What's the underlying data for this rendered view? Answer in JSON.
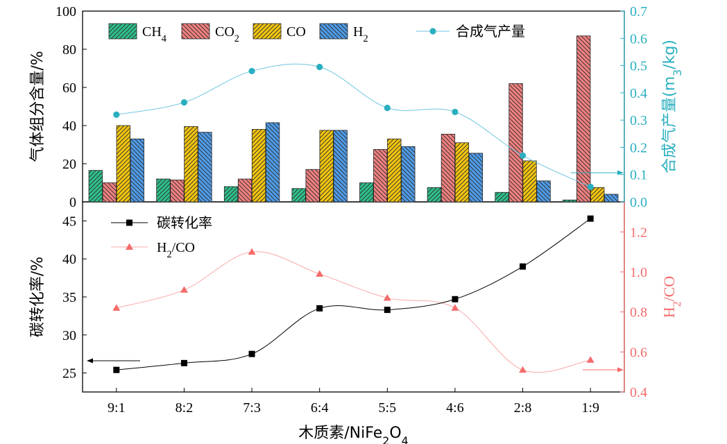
{
  "chart_data": [
    {
      "type": "bar",
      "categories": [
        "9:1",
        "8:2",
        "7:3",
        "6:4",
        "5:5",
        "4:6",
        "2:8",
        "1:9"
      ],
      "ylabel": "气体组分含量/%",
      "ylim": [
        0,
        100
      ],
      "yticks": [
        "0",
        "20",
        "40",
        "60",
        "80",
        "100"
      ],
      "y2label": "合成气产量(m3/kg)",
      "y2label_parts": [
        "合成气产量(m",
        "3",
        "/kg)"
      ],
      "y2lim": [
        0,
        0.7
      ],
      "y2ticks": [
        "0.0",
        "0.1",
        "0.2",
        "0.3",
        "0.4",
        "0.5",
        "0.6",
        "0.7"
      ],
      "legend_position": "top",
      "series": [
        {
          "name": "CH4",
          "name_parts": [
            "CH",
            "4"
          ],
          "color": "#2fbf8a",
          "values": [
            16.5,
            12,
            8,
            7,
            10,
            7.5,
            5,
            1
          ]
        },
        {
          "name": "CO2",
          "name_parts": [
            "CO",
            "2"
          ],
          "color": "#f08080",
          "values": [
            10,
            11.5,
            12,
            17,
            27.5,
            35.5,
            62,
            87
          ]
        },
        {
          "name": "CO",
          "name_parts": [
            "CO",
            ""
          ],
          "color": "#f2c510",
          "values": [
            40,
            39.5,
            38,
            37.5,
            33,
            31,
            21.5,
            7.5
          ]
        },
        {
          "name": "H2",
          "name_parts": [
            "H",
            "2"
          ],
          "color": "#4e9be6",
          "values": [
            33,
            36.5,
            41.5,
            37.5,
            29,
            25.5,
            11,
            4
          ]
        },
        {
          "name": "合成气产量",
          "name_parts": [
            "合成气产量",
            ""
          ],
          "color": "#2aafc0",
          "axis": "right",
          "type": "line",
          "values": [
            0.32,
            0.365,
            0.48,
            0.495,
            0.345,
            0.33,
            0.17,
            0.055
          ]
        }
      ]
    },
    {
      "type": "line",
      "categories": [
        "9:1",
        "8:2",
        "7:3",
        "6:4",
        "5:5",
        "4:6",
        "2:8",
        "1:9"
      ],
      "xlabel": "木质素/NiFe2O4",
      "xlabel_parts": [
        "木质素/NiFe",
        "2",
        "O",
        "4",
        ""
      ],
      "ylabel": "碳转化率/%",
      "ylim": [
        22.5,
        47.5
      ],
      "yticks": [
        "25",
        "30",
        "35",
        "40",
        "45"
      ],
      "y2label": "H2/CO",
      "y2label_parts": [
        "H",
        "2",
        "/CO"
      ],
      "y2lim": [
        0.4,
        1.35
      ],
      "y2ticks": [
        "0.4",
        "0.6",
        "0.8",
        "1.0",
        "1.2"
      ],
      "legend_position": "top-left",
      "series": [
        {
          "name": "碳转化率",
          "name_parts": [
            "碳转化率",
            "",
            ""
          ],
          "color": "#000000",
          "axis": "left",
          "marker": "square",
          "values": [
            25.4,
            26.3,
            27.5,
            33.5,
            33.3,
            34.7,
            39,
            45.3
          ]
        },
        {
          "name": "H2/CO",
          "name_parts": [
            "H",
            "2",
            "/CO"
          ],
          "color": "#f46b6b",
          "axis": "right",
          "marker": "triangle",
          "values": [
            0.82,
            0.91,
            1.1,
            0.99,
            0.87,
            0.82,
            0.51,
            0.56
          ]
        }
      ]
    }
  ]
}
